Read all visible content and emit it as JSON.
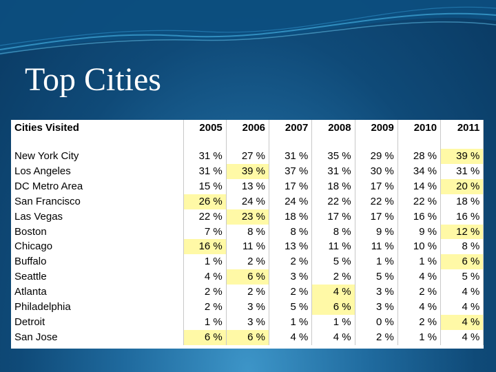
{
  "slide": {
    "title": "Top Cities"
  },
  "table": {
    "header": "Cities Visited",
    "years": [
      "2005",
      "2006",
      "2007",
      "2008",
      "2009",
      "2010",
      "2011"
    ],
    "rows": [
      {
        "city": "New York City",
        "values": [
          "31 %",
          "27 %",
          "31 %",
          "35 %",
          "29 %",
          "28 %",
          "39 %"
        ],
        "highlight": [
          6
        ]
      },
      {
        "city": "Los Angeles",
        "values": [
          "31 %",
          "39 %",
          "37 %",
          "31 %",
          "30 %",
          "34 %",
          "31 %"
        ],
        "highlight": [
          1
        ]
      },
      {
        "city": "DC Metro Area",
        "values": [
          "15 %",
          "13 %",
          "17 %",
          "18 %",
          "17 %",
          "14 %",
          "20 %"
        ],
        "highlight": [
          6
        ]
      },
      {
        "city": "San Francisco",
        "values": [
          "26 %",
          "24 %",
          "24 %",
          "22 %",
          "22 %",
          "22 %",
          "18 %"
        ],
        "highlight": [
          0
        ]
      },
      {
        "city": "Las Vegas",
        "values": [
          "22 %",
          "23 %",
          "18 %",
          "17 %",
          "17 %",
          "16 %",
          "16 %"
        ],
        "highlight": [
          1
        ]
      },
      {
        "city": "Boston",
        "values": [
          "7 %",
          "8 %",
          "8 %",
          "8 %",
          "9 %",
          "9 %",
          "12 %"
        ],
        "highlight": [
          6
        ]
      },
      {
        "city": "Chicago",
        "values": [
          "16 %",
          "11 %",
          "13 %",
          "11 %",
          "11 %",
          "10 %",
          "8 %"
        ],
        "highlight": [
          0
        ]
      },
      {
        "city": "Buffalo",
        "values": [
          "1 %",
          "2 %",
          "2 %",
          "5 %",
          "1 %",
          "1 %",
          "6 %"
        ],
        "highlight": [
          6
        ]
      },
      {
        "city": "Seattle",
        "values": [
          "4 %",
          "6 %",
          "3 %",
          "2 %",
          "5 %",
          "4 %",
          "5 %"
        ],
        "highlight": [
          1
        ]
      },
      {
        "city": "Atlanta",
        "values": [
          "2 %",
          "2 %",
          "2 %",
          "4 %",
          "3 %",
          "2 %",
          "4 %"
        ],
        "highlight": [
          3
        ]
      },
      {
        "city": "Philadelphia",
        "values": [
          "2 %",
          "3 %",
          "5 %",
          "6 %",
          "3 %",
          "4 %",
          "4 %"
        ],
        "highlight": [
          3
        ]
      },
      {
        "city": "Detroit",
        "values": [
          "1 %",
          "3 %",
          "1 %",
          "1 %",
          "0 %",
          "2 %",
          "4 %"
        ],
        "highlight": [
          6
        ]
      },
      {
        "city": "San Jose",
        "values": [
          "6 %",
          "6 %",
          "4 %",
          "4 %",
          "2 %",
          "1 %",
          "4 %"
        ],
        "highlight": [
          0,
          1
        ]
      }
    ],
    "highlight_color": "#fff9a6"
  }
}
